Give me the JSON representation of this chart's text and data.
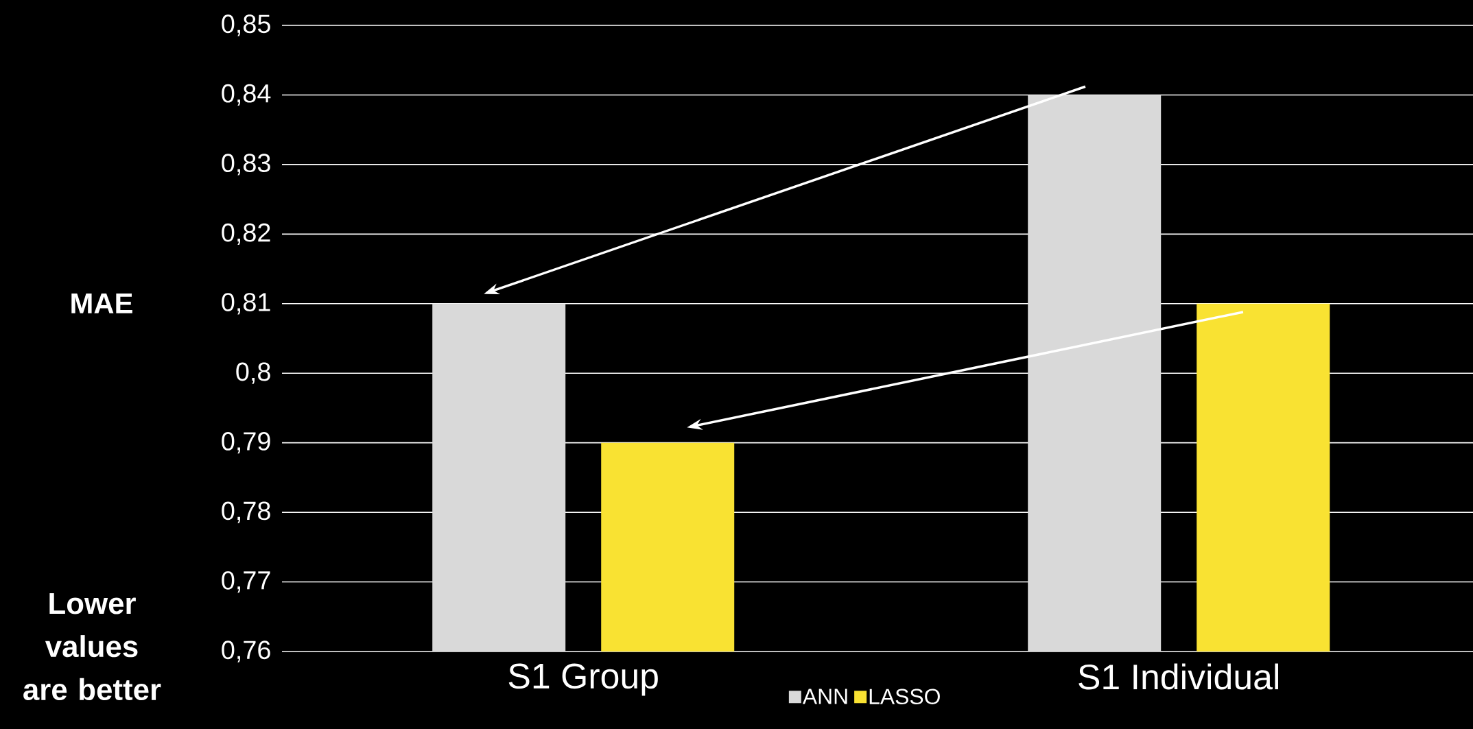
{
  "chart_data": {
    "type": "bar",
    "ylabel": "MAE",
    "categories": [
      "S1 Group",
      "S1 Individual"
    ],
    "series": [
      {
        "name": "ANN",
        "color": "#d9d9d9",
        "values": [
          0.81,
          0.84
        ]
      },
      {
        "name": "LASSO",
        "color": "#f9e232",
        "values": [
          0.79,
          0.81
        ]
      }
    ],
    "ylim": [
      0.76,
      0.85
    ],
    "yticks": [
      {
        "value": 0.76,
        "label": "0,76"
      },
      {
        "value": 0.77,
        "label": "0,77"
      },
      {
        "value": 0.78,
        "label": "0,78"
      },
      {
        "value": 0.79,
        "label": "0,79"
      },
      {
        "value": 0.8,
        "label": "0,8"
      },
      {
        "value": 0.81,
        "label": "0,81"
      },
      {
        "value": 0.82,
        "label": "0,82"
      },
      {
        "value": 0.83,
        "label": "0,83"
      },
      {
        "value": 0.84,
        "label": "0,84"
      },
      {
        "value": 0.85,
        "label": "0,85"
      }
    ],
    "grid": "y",
    "legend": "bottom",
    "annotations": [
      "Lower values are better"
    ]
  }
}
